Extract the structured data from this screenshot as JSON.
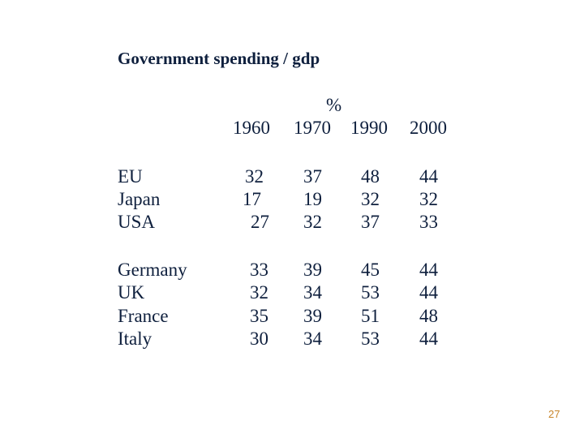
{
  "title": "Government spending / gdp",
  "unit": "%",
  "years": [
    "1960",
    "1970",
    "1990",
    "2000"
  ],
  "groups": [
    {
      "rows": [
        {
          "country": "EU",
          "values": [
            "32",
            "37",
            "48",
            "44"
          ]
        },
        {
          "country": "Japan",
          "values": [
            "17",
            "19",
            "32",
            "32"
          ]
        },
        {
          "country": "USA",
          "values": [
            "27",
            "32",
            "37",
            "33"
          ]
        }
      ]
    },
    {
      "rows": [
        {
          "country": "Germany",
          "values": [
            "33",
            "39",
            "45",
            "44"
          ]
        },
        {
          "country": "UK",
          "values": [
            "32",
            "34",
            "53",
            "44"
          ]
        },
        {
          "country": "France",
          "values": [
            "35",
            "39",
            "51",
            "48"
          ]
        },
        {
          "country": "Italy",
          "values": [
            "30",
            "34",
            "53",
            "44"
          ]
        }
      ]
    }
  ],
  "page_number": "27"
}
